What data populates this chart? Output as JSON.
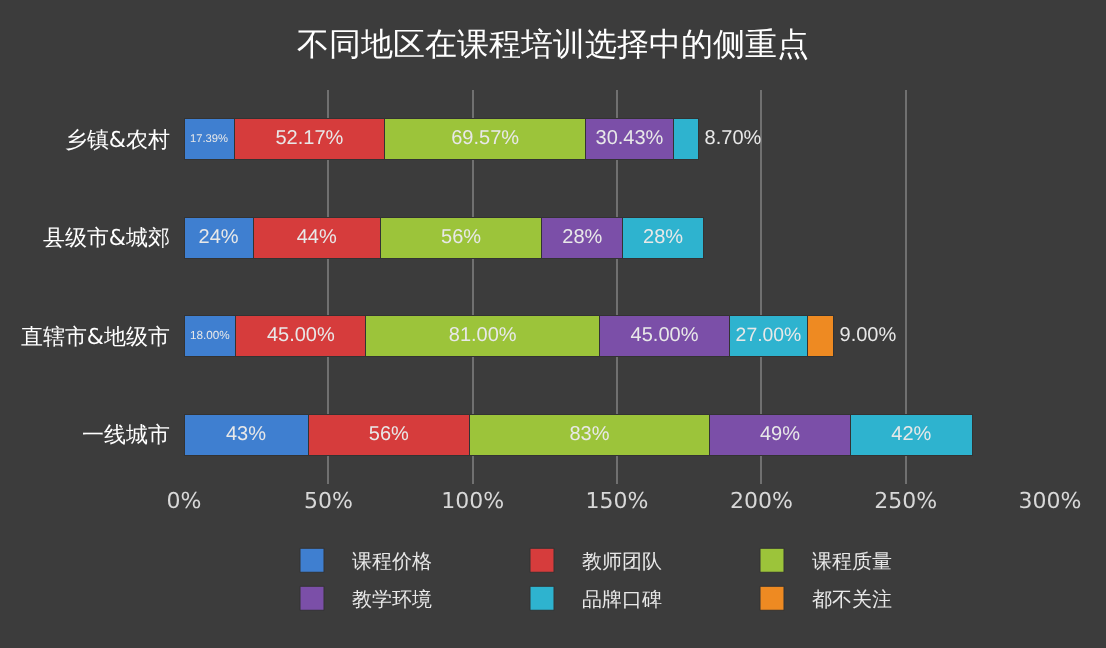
{
  "chart_data": {
    "type": "bar",
    "orientation": "horizontal",
    "stacked": true,
    "title": "不同地区在课程培训选择中的侧重点",
    "categories": [
      "乡镇&农村",
      "县级市&城郊",
      "直辖市&地级市",
      "一线城市"
    ],
    "series": [
      {
        "name": "课程价格",
        "color": "#3f7fd0",
        "values": [
          17.39,
          24,
          18.0,
          43
        ],
        "value_labels": [
          "17.39%",
          "24%",
          "18.00%",
          "43%"
        ]
      },
      {
        "name": "教师团队",
        "color": "#d63c3c",
        "values": [
          52.17,
          44,
          45.0,
          56
        ],
        "value_labels": [
          "52.17%",
          "44%",
          "45.00%",
          "56%"
        ]
      },
      {
        "name": "课程质量",
        "color": "#9cc43a",
        "values": [
          69.57,
          56,
          81.0,
          83
        ],
        "value_labels": [
          "69.57%",
          "56%",
          "81.00%",
          "83%"
        ]
      },
      {
        "name": "教学环境",
        "color": "#7b4fa8",
        "values": [
          30.43,
          28,
          45.0,
          49
        ],
        "value_labels": [
          "30.43%",
          "28%",
          "45.00%",
          "49%"
        ]
      },
      {
        "name": "品牌口碑",
        "color": "#2eb3cf",
        "values": [
          8.7,
          28,
          27.0,
          42
        ],
        "value_labels": [
          "8.70%",
          "28%",
          "27.00%",
          "42%"
        ]
      },
      {
        "name": "都不关注",
        "color": "#ee8a22",
        "values": [
          null,
          null,
          9.0,
          null
        ],
        "value_labels": [
          null,
          null,
          "9.00%",
          null
        ]
      }
    ],
    "xlim": [
      0,
      300
    ],
    "xticks": [
      {
        "value": 0,
        "label": "0%"
      },
      {
        "value": 50,
        "label": "50%"
      },
      {
        "value": 100,
        "label": "100%"
      },
      {
        "value": 150,
        "label": "150%"
      },
      {
        "value": 200,
        "label": "200%"
      },
      {
        "value": 250,
        "label": "250%"
      },
      {
        "value": 300,
        "label": "300%"
      }
    ],
    "grid": "x",
    "legend": "bottom"
  }
}
